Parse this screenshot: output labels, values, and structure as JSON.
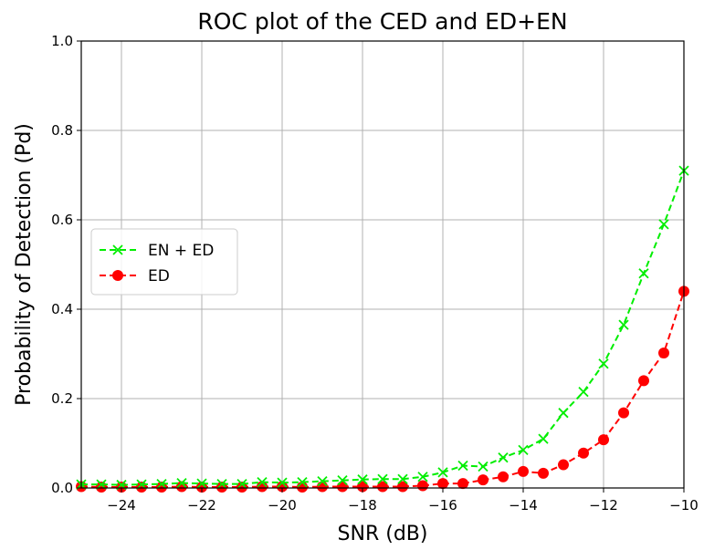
{
  "chart_data": {
    "type": "line",
    "title": "ROC plot of the CED and ED+EN",
    "xlabel": "SNR (dB)",
    "ylabel": "Probability of Detection (Pd)",
    "xlim": [
      -25,
      -10
    ],
    "ylim": [
      0.0,
      1.0
    ],
    "xticks": [
      -24,
      -22,
      -20,
      -18,
      -16,
      -14,
      -12,
      -10
    ],
    "yticks": [
      0.0,
      0.2,
      0.4,
      0.6,
      0.8,
      1.0
    ],
    "xtick_labels": [
      "−24",
      "−22",
      "−20",
      "−18",
      "−16",
      "−14",
      "−12",
      "−10"
    ],
    "ytick_labels": [
      "0.0",
      "0.2",
      "0.4",
      "0.6",
      "0.8",
      "1.0"
    ],
    "grid": true,
    "legend_position": "center-left",
    "x": [
      -25,
      -24.5,
      -24,
      -23.5,
      -23,
      -22.5,
      -22,
      -21.5,
      -21,
      -20.5,
      -20,
      -19.5,
      -19,
      -18.5,
      -18,
      -17.5,
      -17,
      -16.5,
      -16,
      -15.5,
      -15,
      -14.5,
      -14,
      -13.5,
      -13,
      -12.5,
      -12,
      -11.5,
      -11,
      -10.5,
      -10
    ],
    "series": [
      {
        "name": "EN + ED",
        "color": "#00ee00",
        "line_style": "dashed",
        "marker": "x",
        "values": [
          0.008,
          0.008,
          0.007,
          0.008,
          0.009,
          0.011,
          0.01,
          0.009,
          0.009,
          0.013,
          0.012,
          0.013,
          0.015,
          0.017,
          0.019,
          0.02,
          0.02,
          0.025,
          0.035,
          0.05,
          0.048,
          0.068,
          0.085,
          0.11,
          0.168,
          0.215,
          0.278,
          0.365,
          0.48,
          0.59,
          0.71
        ]
      },
      {
        "name": "ED",
        "color": "#ff0000",
        "line_style": "dashed",
        "marker": "circle",
        "values": [
          0.003,
          0.002,
          0.002,
          0.002,
          0.002,
          0.003,
          0.002,
          0.002,
          0.002,
          0.003,
          0.003,
          0.002,
          0.003,
          0.003,
          0.003,
          0.003,
          0.003,
          0.005,
          0.01,
          0.01,
          0.018,
          0.025,
          0.037,
          0.033,
          0.052,
          0.078,
          0.108,
          0.168,
          0.24,
          0.302,
          0.44
        ]
      }
    ]
  }
}
